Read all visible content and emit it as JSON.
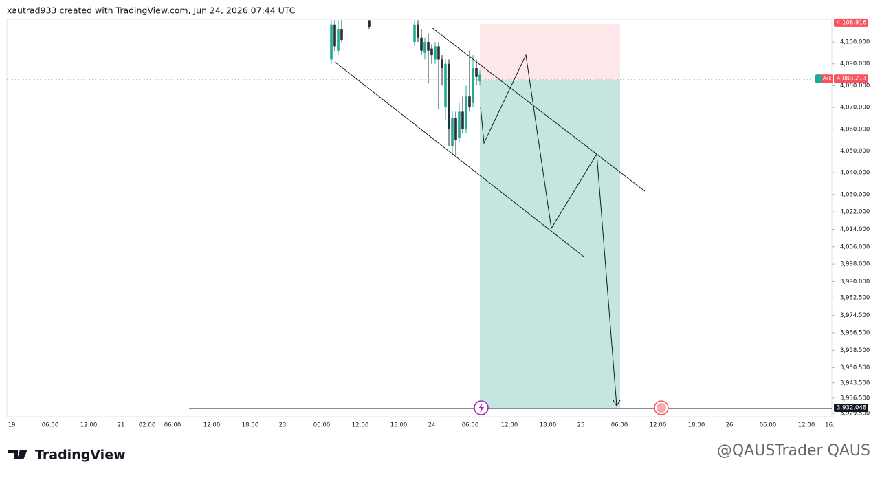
{
  "header": {
    "text": "xautrad933 created with TradingView.com, Jun 24, 2026 07:44 UTC"
  },
  "chart_data": {
    "type": "candlestick",
    "open": [
      4092,
      4108,
      4096,
      4106,
      4110,
      4100,
      4108,
      4102,
      4095,
      4100,
      4097,
      4092,
      4098,
      4092,
      4070,
      4090,
      4052,
      4065,
      4056,
      4068,
      4060,
      4075,
      4072,
      4088,
      4082
    ],
    "high": [
      4110,
      4110,
      4110,
      4110,
      4110,
      4110,
      4110,
      4106,
      4102,
      4104,
      4099,
      4100,
      4100,
      4094,
      4092,
      4092,
      4068,
      4068,
      4072,
      4075,
      4080,
      4096,
      4094,
      4092,
      4087
    ],
    "low": [
      4090,
      4096,
      4094,
      4100,
      4106,
      4098,
      4100,
      4094,
      4092,
      4081,
      4090,
      4090,
      4069,
      4080,
      4064,
      4052,
      4048,
      4048,
      4054,
      4058,
      4058,
      4068,
      4070,
      4080,
      4080
    ],
    "close": [
      4108,
      4098,
      4106,
      4101,
      4107,
      4108,
      4102,
      4096,
      4100,
      4096,
      4094,
      4098,
      4092,
      4088,
      4090,
      4060,
      4065,
      4055,
      4068,
      4060,
      4075,
      4070,
      4088,
      4084,
      4085
    ],
    "up_color": "#22ab94",
    "down_color": "#2a2e39",
    "ylim": [
      3927.96,
      4110.44
    ],
    "yticks": [
      {
        "value": 4100,
        "label": "4,100.000"
      },
      {
        "value": 4090,
        "label": "4,090.000"
      },
      {
        "value": 4080,
        "label": "4,080.000"
      },
      {
        "value": 4070,
        "label": "4,070.000"
      },
      {
        "value": 4060,
        "label": "4,060.000"
      },
      {
        "value": 4050,
        "label": "4,050.000"
      },
      {
        "value": 4040,
        "label": "4,040.000"
      },
      {
        "value": 4030,
        "label": "4,030.000"
      },
      {
        "value": 4022,
        "label": "4,022.000"
      },
      {
        "value": 4014,
        "label": "4,014.000"
      },
      {
        "value": 4006,
        "label": "4,006.000"
      },
      {
        "value": 3998,
        "label": "3,998.000"
      },
      {
        "value": 3990,
        "label": "3,990.000"
      },
      {
        "value": 3982.5,
        "label": "3,982.500"
      },
      {
        "value": 3974.5,
        "label": "3,974.500"
      },
      {
        "value": 3966.5,
        "label": "3,966.500"
      },
      {
        "value": 3958.5,
        "label": "3,958.500"
      },
      {
        "value": 3950.5,
        "label": "3,950.500"
      },
      {
        "value": 3943.5,
        "label": "3,943.500"
      },
      {
        "value": 3936.5,
        "label": "3,936.500"
      },
      {
        "value": 3929.5,
        "label": "3,929.500"
      }
    ],
    "price_tags": [
      {
        "value": 4108.916,
        "label": "4,108.916",
        "color": "#f7525f"
      },
      {
        "value": 4083.213,
        "label": "4,083.213",
        "color": "#f7525f",
        "name": "Ask"
      },
      {
        "value": 3932.048,
        "label": "3,932.048",
        "color": "#131722"
      }
    ],
    "time_labels": [
      "19",
      "06:00",
      "12:00",
      "21",
      "02:00",
      "06:00",
      "12:00",
      "18:00",
      "23",
      "06:00",
      "12:00",
      "18:00",
      "24",
      "06:00",
      "12:00",
      "18:00",
      "25",
      "06:00",
      "12:00",
      "18:00",
      "26",
      "06:00",
      "12:00",
      "16:"
    ]
  },
  "footer": {
    "logo": "TradingView",
    "watermark": "@QAUSTrader QAUS"
  }
}
